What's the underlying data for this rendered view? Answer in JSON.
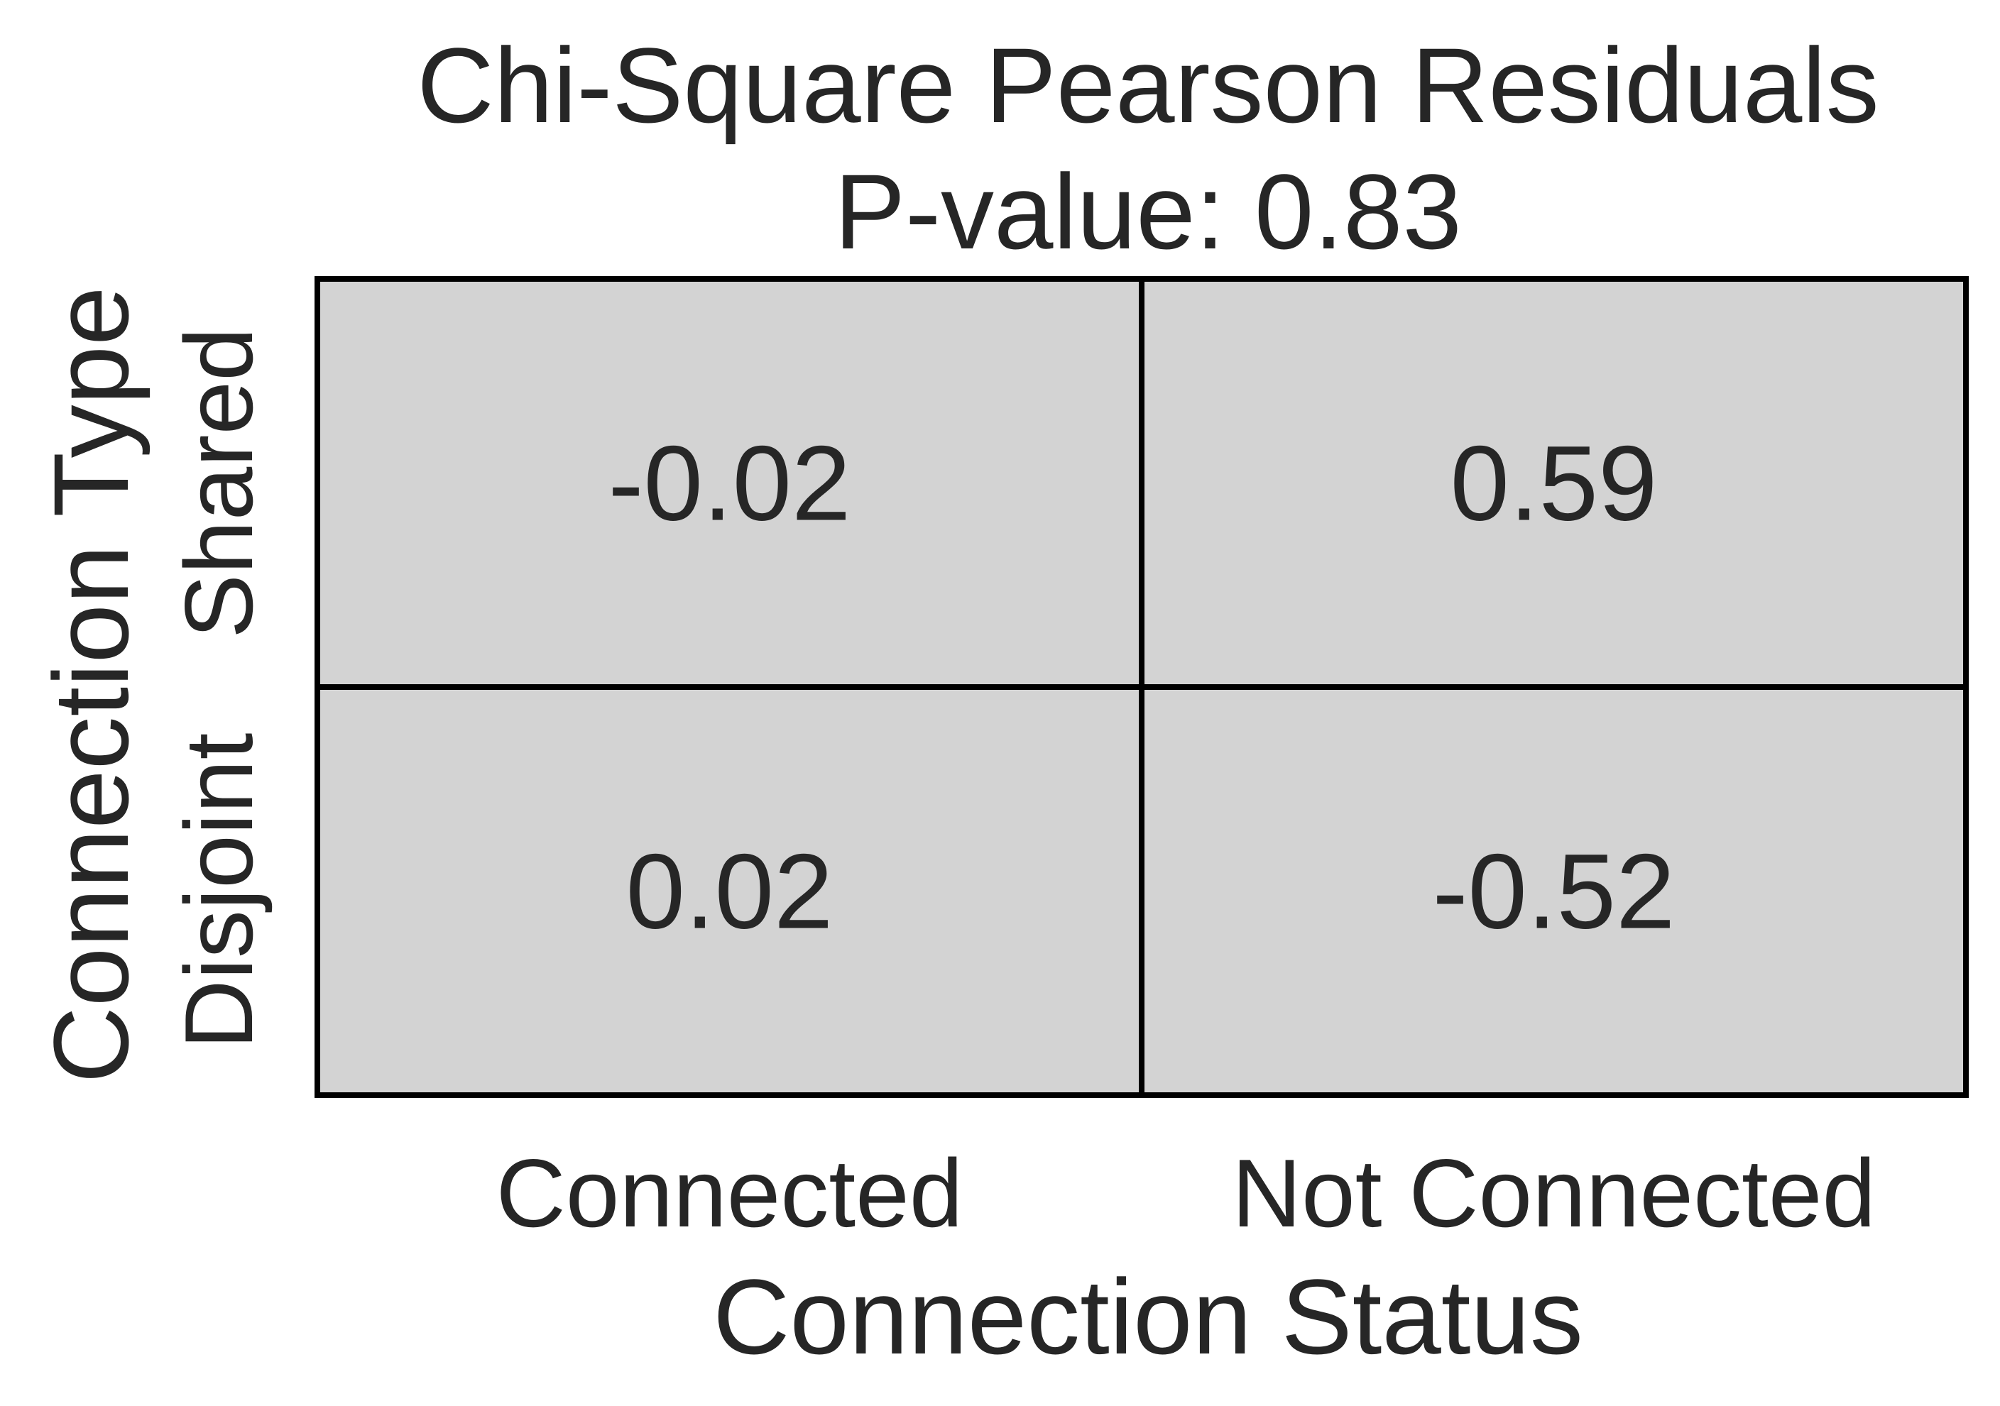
{
  "chart_data": {
    "type": "heatmap",
    "title": "Chi-Square Pearson Residuals",
    "subtitle": "P-value: 0.83",
    "xlabel": "Connection Status",
    "ylabel": "Connection Type",
    "x_categories": [
      "Connected",
      "Not Connected"
    ],
    "y_categories": [
      "Shared",
      "Disjoint"
    ],
    "values": [
      [
        -0.02,
        0.59
      ],
      [
        0.02,
        -0.52
      ]
    ],
    "value_labels": [
      [
        "-0.02",
        "0.59"
      ],
      [
        "0.02",
        "-0.52"
      ]
    ],
    "cell_color": "#d3d3d3",
    "grid_color": "#000000",
    "text_color": "#262626"
  }
}
